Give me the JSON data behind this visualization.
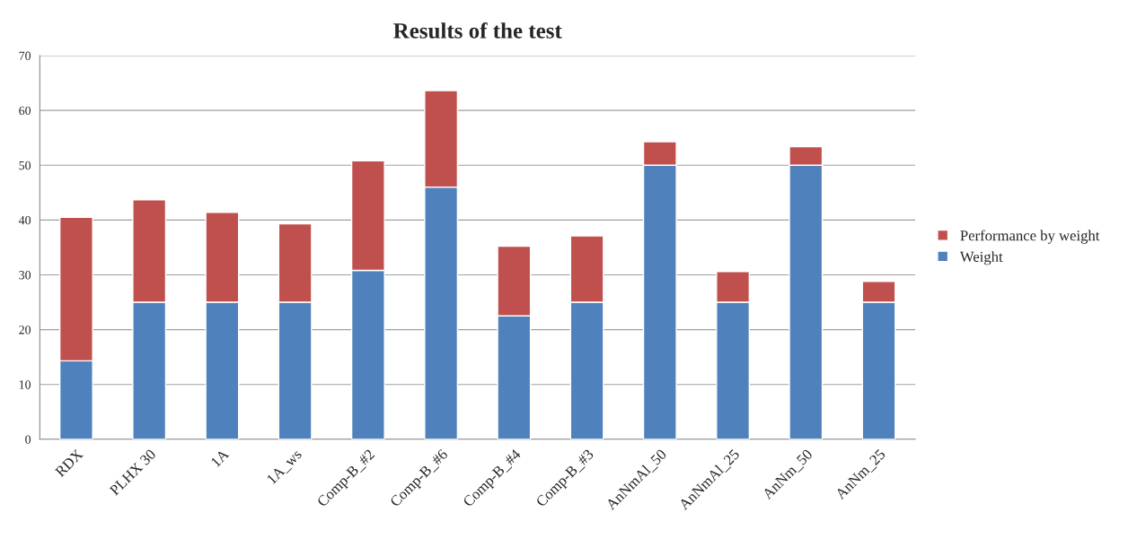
{
  "chart_data": {
    "type": "bar",
    "title": "Results of the test",
    "stacked": true,
    "categories": [
      "RDX",
      "PLHX 30",
      "1A",
      "1A_ws",
      "Comp-B_#2",
      "Comp-B_#6",
      "Comp-B_#4",
      "Comp-B_#3",
      "AnNmAl_50",
      "AnNmAl_25",
      "AnNm_50",
      "AnNm_25"
    ],
    "series": [
      {
        "name": "Weight",
        "color": "#4f81bd",
        "values": [
          14.3,
          25,
          25,
          25,
          30.8,
          46,
          22.5,
          25,
          50,
          25,
          50,
          25
        ]
      },
      {
        "name": "Performance by weight",
        "color": "#c0504d",
        "values": [
          26.2,
          18.7,
          16.4,
          14.3,
          20,
          17.6,
          12.7,
          12.1,
          4.3,
          5.6,
          3.4,
          3.8
        ]
      }
    ],
    "ylim": [
      0,
      70
    ],
    "yticks": [
      0,
      10,
      20,
      30,
      40,
      50,
      60,
      70
    ],
    "grid": "y",
    "legend": "right"
  }
}
